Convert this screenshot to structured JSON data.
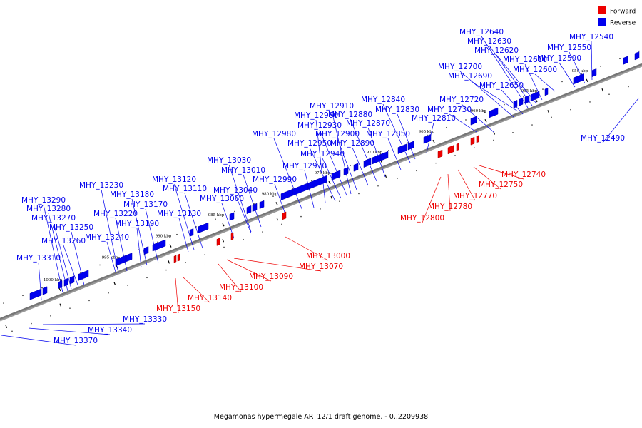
{
  "caption": "Megamonas hypermegale ART12/1 draft genome. - 0..2209938",
  "colors": {
    "forward": "#ee0000",
    "reverse": "#0000ee",
    "axis": "#777777"
  },
  "legend": [
    {
      "key": "forward",
      "label": "Forward"
    },
    {
      "key": "reverse",
      "label": "Reverse"
    }
  ],
  "ticks": [
    "950 kbp",
    "955 kbp",
    "960 kbp",
    "965 kbp",
    "970 kbp",
    "975 kbp",
    "980 kbp",
    "985 kbp",
    "990 kbp",
    "995 kbp",
    "1000 kbp"
  ],
  "reverse_genes": [
    "MHY_12490",
    "MHY_12540",
    "MHY_12550",
    "MHY_12590",
    "MHY_12600",
    "MHY_12610",
    "MHY_12620",
    "MHY_12630",
    "MHY_12640",
    "MHY_12650",
    "MHY_12690",
    "MHY_12700",
    "MHY_12720",
    "MHY_12730",
    "MHY_12810",
    "MHY_12830",
    "MHY_12840",
    "MHY_12850",
    "MHY_12870",
    "MHY_12880",
    "MHY_12890",
    "MHY_12900",
    "MHY_12910",
    "MHY_12930",
    "MHY_12940",
    "MHY_12950",
    "MHY_12960",
    "MHY_12970",
    "MHY_12980",
    "MHY_12990",
    "MHY_13010",
    "MHY_13030",
    "MHY_13040",
    "MHY_13060",
    "MHY_13110",
    "MHY_13120",
    "MHY_13130",
    "MHY_13170",
    "MHY_13180",
    "MHY_13190",
    "MHY_13220",
    "MHY_13230",
    "MHY_13240",
    "MHY_13250",
    "MHY_13260",
    "MHY_13270",
    "MHY_13280",
    "MHY_13290",
    "MHY_13310",
    "MHY_13330",
    "MHY_13340",
    "MHY_13370"
  ],
  "forward_genes": [
    "MHY_12740",
    "MHY_12750",
    "MHY_12770",
    "MHY_12780",
    "MHY_12800",
    "MHY_13000",
    "MHY_13070",
    "MHY_13090",
    "MHY_13100",
    "MHY_13140",
    "MHY_13150"
  ]
}
